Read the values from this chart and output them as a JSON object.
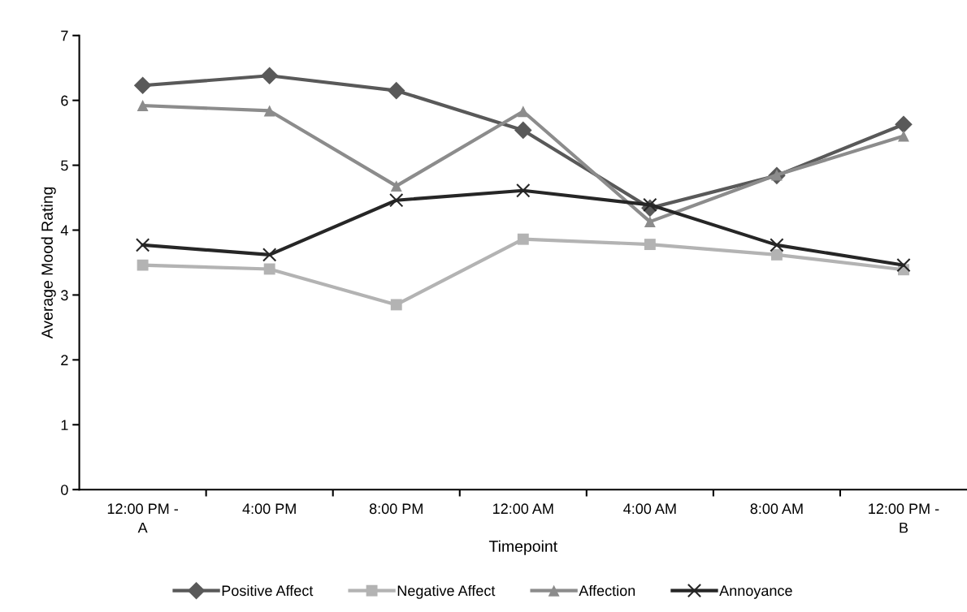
{
  "chart_data": {
    "type": "line",
    "xlabel": "Timepoint",
    "ylabel": "Average Mood Rating",
    "categories": [
      "12:00 PM -\nA",
      "4:00 PM",
      "8:00 PM",
      "12:00 AM",
      "4:00 AM",
      "8:00 AM",
      "12:00 PM -\nB"
    ],
    "ylim": [
      0,
      7
    ],
    "yticks": [
      0,
      1,
      2,
      3,
      4,
      5,
      6,
      7
    ],
    "grid": false,
    "legend": "bottom",
    "series": [
      {
        "name": "Positive Affect",
        "color": "#595959",
        "marker": "diamond",
        "values": [
          6.23,
          6.38,
          6.15,
          5.54,
          4.34,
          4.84,
          5.63
        ]
      },
      {
        "name": "Negative Affect",
        "color": "#b3b3b3",
        "marker": "square",
        "values": [
          3.46,
          3.4,
          2.85,
          3.86,
          3.78,
          3.62,
          3.39
        ]
      },
      {
        "name": "Affection",
        "color": "#8c8c8c",
        "marker": "triangle",
        "values": [
          5.92,
          5.84,
          4.68,
          5.83,
          4.13,
          4.85,
          5.45
        ]
      },
      {
        "name": "Annoyance",
        "color": "#262626",
        "marker": "cross",
        "values": [
          3.77,
          3.62,
          4.46,
          4.61,
          4.39,
          3.77,
          3.46
        ]
      }
    ]
  }
}
